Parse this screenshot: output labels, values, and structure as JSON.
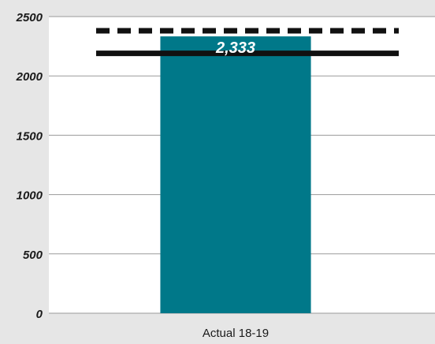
{
  "chart_data": {
    "type": "bar",
    "categories": [
      "Actual 18-19"
    ],
    "values": [
      2333
    ],
    "value_labels": [
      "2,333"
    ],
    "ylim": [
      0,
      2500
    ],
    "yticks": [
      0,
      500,
      1000,
      1500,
      2000,
      2500
    ],
    "ytick_labels": [
      "0",
      "500",
      "1000",
      "1500",
      "2000",
      "2500"
    ],
    "reference_lines": [
      {
        "value": 2380,
        "style": "dashed"
      },
      {
        "value": 2190,
        "style": "solid"
      }
    ],
    "grid": true,
    "legend": "none"
  },
  "colors": {
    "background": "#e6e6e6",
    "plot_background": "#ffffff",
    "bar": "#007889",
    "gridline": "#9a9a9a",
    "reference_line": "#111111",
    "label_text": "#ffffff"
  }
}
